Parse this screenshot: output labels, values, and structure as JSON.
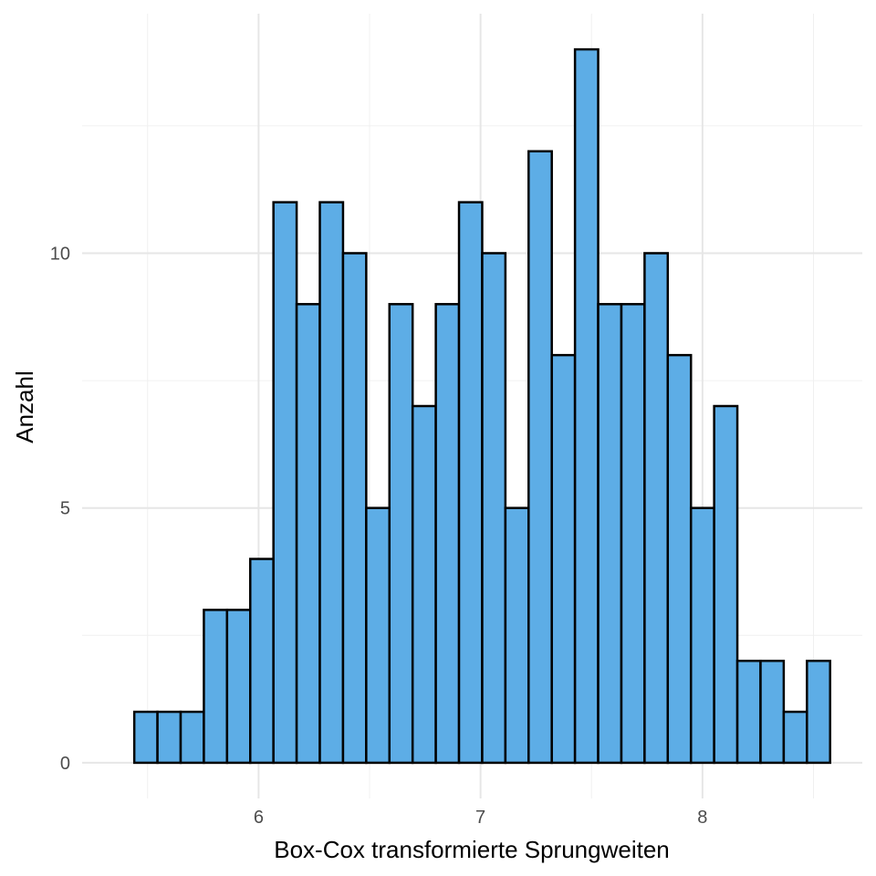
{
  "chart_data": {
    "type": "bar",
    "title": "",
    "xlabel": "Box-Cox transformierte Sprungweiten",
    "ylabel": "Anzahl",
    "bin_start": 5.44,
    "bin_width": 0.1045,
    "counts": [
      1,
      1,
      1,
      3,
      3,
      4,
      11,
      9,
      11,
      10,
      5,
      9,
      7,
      9,
      11,
      10,
      5,
      12,
      8,
      14,
      9,
      9,
      10,
      8,
      5,
      7,
      2,
      2,
      1,
      2
    ],
    "xlim": [
      5.205,
      8.72
    ],
    "ylim": [
      -0.7,
      14.7
    ],
    "x_ticks": [
      6,
      7,
      8
    ],
    "x_tick_labels": [
      "6",
      "7",
      "8"
    ],
    "y_ticks": [
      0,
      5,
      10
    ],
    "y_tick_labels": [
      "0",
      "5",
      "10"
    ],
    "grid": true,
    "bar_fill": "#5DADE6",
    "bar_stroke": "#000000",
    "grid_major_color": "#e6e6e6",
    "grid_minor_color": "#f0f0f0"
  }
}
